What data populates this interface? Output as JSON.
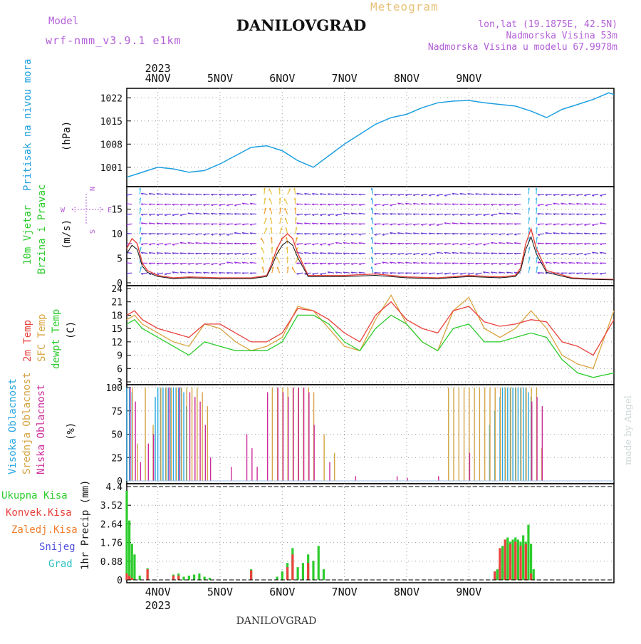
{
  "header": {
    "model_label": "Model",
    "model_name": "wrf-nmm_v3.9.1 e1km",
    "meteogram_label": "Meteogram",
    "station": "DANILOVGRAD",
    "lonlat": "lon,lat (19.1875E, 42.5N)",
    "elevation": "Nadmorska Visina 53m",
    "model_elevation": "Nadmorska Visina u modelu 67.9978m"
  },
  "footer": {
    "station": "DANILOVGRAD",
    "credit": "made by Angel"
  },
  "colors": {
    "pressure": "#1e9fe0",
    "temp2m": "#e8423c",
    "sfc": "#d9a441",
    "dew": "#2dcc2d",
    "wind_label": "#2dcc2d",
    "high_cloud": "#29a7e0",
    "mid_cloud": "#d4a443",
    "low_cloud": "#cc2b9b",
    "total_precip": "#2dcc2d",
    "conv_precip": "#e8423c",
    "frozen": "#f07e2f",
    "snow": "#5050e0",
    "hail": "#30c0c0",
    "violet": "#b45fd8"
  },
  "chart_data": [
    {
      "id": "pressure",
      "type": "line",
      "ylabel": "Pritisak na nivou mora",
      "unit": "(hPa)",
      "ylim": [
        996,
        1024
      ],
      "yticks": [
        1001,
        1008,
        1015,
        1022
      ],
      "x_days_top_year": "2023",
      "days": [
        "4NOV",
        "5NOV",
        "6NOV",
        "7NOV",
        "8NOV",
        "9NOV"
      ],
      "series": [
        {
          "x": [
            0,
            4,
            8,
            12,
            18,
            24,
            30,
            36,
            42,
            48,
            54,
            60,
            66,
            72,
            78,
            84,
            90,
            96,
            102,
            108,
            114,
            120,
            126,
            132,
            138,
            144,
            150,
            156,
            162,
            168,
            174,
            180,
            186,
            188
          ],
          "y": [
            998,
            999,
            1000,
            1001,
            1000.5,
            999.5,
            1000,
            1002,
            1004.5,
            1007,
            1007.5,
            1006,
            1003,
            1001,
            1004.5,
            1008,
            1011,
            1014,
            1016,
            1017,
            1019,
            1020.5,
            1021,
            1021.2,
            1020.5,
            1020,
            1019.5,
            1018,
            1016,
            1018.5,
            1020,
            1021.5,
            1023.5,
            1023
          ]
        }
      ]
    },
    {
      "id": "wind",
      "type": "line",
      "ylabel": "10m Vjetar",
      "ylabel2": "Brzina i Pravac",
      "unit": "(m/s)",
      "compass": [
        "W",
        "E",
        "N",
        "S"
      ],
      "ylim": [
        0,
        19
      ],
      "yticks": [
        0,
        5,
        10,
        15
      ],
      "series": [
        {
          "name": "speed",
          "x": [
            0,
            2,
            4,
            6,
            8,
            12,
            18,
            24,
            36,
            48,
            54,
            56,
            58,
            60,
            62,
            64,
            66,
            70,
            84,
            96,
            108,
            120,
            132,
            144,
            150,
            152,
            154,
            156,
            158,
            162,
            172,
            180,
            188
          ],
          "y": [
            7,
            9,
            8,
            4,
            2.5,
            1.5,
            1,
            1.2,
            1,
            1,
            1.5,
            4,
            7,
            9,
            10,
            9,
            6,
            1.5,
            1.5,
            1.8,
            1.2,
            1,
            1.5,
            1.2,
            1.5,
            3,
            8,
            11,
            7,
            2.5,
            1,
            0.8,
            0.7
          ]
        }
      ]
    },
    {
      "id": "temperature",
      "type": "line",
      "ylabel": "2m Temp",
      "ylabel2": "SFC Temp",
      "ylabel3": "dewpt Temp",
      "unit": "(C)",
      "ylim": [
        3,
        24
      ],
      "yticks": [
        3,
        6,
        9,
        12,
        15,
        18,
        21,
        24
      ],
      "series": [
        {
          "name": "2m Temp",
          "x": [
            0,
            3,
            6,
            12,
            18,
            24,
            30,
            36,
            42,
            48,
            54,
            60,
            66,
            72,
            78,
            84,
            90,
            96,
            102,
            108,
            114,
            120,
            126,
            132,
            138,
            144,
            150,
            156,
            162,
            168,
            174,
            180,
            188
          ],
          "y": [
            18,
            19,
            17,
            15,
            14,
            13,
            16,
            16,
            14,
            12,
            12,
            14,
            19.5,
            19,
            17,
            14,
            12,
            18,
            21,
            17,
            15,
            14,
            19,
            20,
            16.5,
            15.5,
            16,
            17,
            16.5,
            12,
            11,
            9,
            17
          ]
        },
        {
          "name": "SFC Temp",
          "x": [
            0,
            3,
            6,
            12,
            18,
            24,
            30,
            36,
            42,
            48,
            54,
            60,
            66,
            72,
            78,
            84,
            90,
            96,
            102,
            108,
            114,
            120,
            126,
            132,
            138,
            144,
            150,
            156,
            162,
            168,
            174,
            180,
            188
          ],
          "y": [
            17,
            18,
            16,
            14,
            12,
            11,
            16,
            15,
            12,
            10,
            11,
            13,
            20,
            19,
            15,
            11,
            10,
            17,
            22.5,
            16,
            12,
            10,
            19,
            22,
            15,
            13,
            15,
            19,
            15,
            9,
            7,
            6,
            19
          ]
        },
        {
          "name": "dewpt Temp",
          "x": [
            0,
            3,
            6,
            12,
            18,
            24,
            30,
            36,
            42,
            48,
            54,
            60,
            66,
            72,
            78,
            84,
            90,
            96,
            102,
            108,
            114,
            120,
            126,
            132,
            138,
            144,
            150,
            156,
            162,
            168,
            174,
            180,
            188
          ],
          "y": [
            16,
            17,
            15,
            13,
            11,
            9,
            12,
            11,
            10,
            10,
            10,
            12,
            18,
            18,
            16,
            12,
            10,
            15,
            18,
            16,
            12,
            10,
            15,
            16,
            12,
            12,
            13,
            14,
            13,
            8,
            5,
            4,
            5
          ]
        }
      ]
    },
    {
      "id": "clouds",
      "type": "bar",
      "ylabel": "Visoka Oblacnost",
      "ylabel2": "Srednja Oblacnost",
      "ylabel3": "Niska Oblacnost",
      "unit": "(%)",
      "ylim": [
        0,
        100
      ],
      "yticks": [
        0,
        25,
        50,
        75,
        100
      ],
      "series": [
        {
          "name": "Visoka Oblacnost",
          "x": [
            0,
            1,
            2,
            11,
            12,
            13,
            14,
            15,
            16,
            17,
            18,
            19,
            20,
            21,
            22,
            23,
            140,
            142,
            144,
            145,
            146,
            147,
            148,
            149,
            150,
            151,
            152,
            153,
            154,
            155,
            156
          ],
          "values": [
            100,
            100,
            95,
            90,
            100,
            100,
            100,
            100,
            100,
            100,
            100,
            100,
            100,
            100,
            95,
            80,
            60,
            75,
            90,
            100,
            100,
            100,
            100,
            100,
            100,
            100,
            100,
            100,
            100,
            95,
            90
          ]
        },
        {
          "name": "Srednja Oblacnost",
          "x": [
            2,
            4,
            7,
            10,
            13,
            15,
            17,
            19,
            21,
            23,
            25,
            27,
            29,
            31,
            56,
            58,
            60,
            62,
            64,
            66,
            68,
            70,
            72,
            76,
            80,
            124,
            126,
            128,
            130,
            132,
            134,
            136,
            138,
            140,
            142,
            144,
            146,
            148,
            150,
            152,
            154,
            156,
            158,
            160
          ],
          "values": [
            100,
            40,
            100,
            60,
            100,
            100,
            100,
            100,
            100,
            100,
            100,
            100,
            95,
            80,
            100,
            100,
            100,
            100,
            100,
            100,
            100,
            100,
            95,
            50,
            30,
            100,
            100,
            100,
            100,
            100,
            100,
            100,
            100,
            100,
            100,
            100,
            100,
            100,
            100,
            100,
            100,
            100,
            100,
            35
          ]
        },
        {
          "name": "Niska Oblacnost",
          "x": [
            1,
            3,
            5,
            8,
            10,
            16,
            20,
            24,
            26,
            28,
            30,
            32,
            40,
            46,
            48,
            50,
            54,
            58,
            60,
            62,
            64,
            66,
            68,
            70,
            72,
            78,
            88,
            104,
            108,
            120,
            132,
            156,
            158,
            160
          ],
          "values": [
            100,
            85,
            20,
            40,
            50,
            100,
            100,
            95,
            90,
            85,
            60,
            25,
            15,
            50,
            35,
            15,
            95,
            100,
            95,
            90,
            100,
            100,
            100,
            95,
            60,
            20,
            5,
            5,
            3,
            5,
            30,
            85,
            90,
            80
          ]
        }
      ]
    },
    {
      "id": "precip",
      "type": "bar",
      "ylabel": "1hr Precip (mm)",
      "legend": [
        "Ukupna Kisa",
        "Konvek.Kisa",
        "Zaledj.Kisa",
        "Snijeg",
        "Grad"
      ],
      "ylim": [
        0,
        4.4
      ],
      "yticks": [
        0,
        0.88,
        1.76,
        2.64,
        3.52,
        4.4
      ],
      "series": [
        {
          "name": "Ukupna Kisa",
          "x": [
            0,
            1,
            2,
            3,
            5,
            8,
            18,
            20,
            22,
            24,
            26,
            28,
            30,
            32,
            48,
            58,
            60,
            62,
            64,
            66,
            68,
            70,
            72,
            74,
            76,
            142,
            143,
            144,
            145,
            146,
            147,
            148,
            149,
            150,
            151,
            152,
            153,
            154,
            155,
            156,
            157
          ],
          "values": [
            4.2,
            2.8,
            1.7,
            1.2,
            0.2,
            0.55,
            0.25,
            0.3,
            0.15,
            0.2,
            0.25,
            0.3,
            0.15,
            0.1,
            0.5,
            0.15,
            0.4,
            0.8,
            1.5,
            0.6,
            0.8,
            1.2,
            0.9,
            1.6,
            0.5,
            0.2,
            0.5,
            0.8,
            1.6,
            1.9,
            2.0,
            1.8,
            1.9,
            2.0,
            1.9,
            1.8,
            2.1,
            1.8,
            2.6,
            1.7,
            0.5
          ]
        },
        {
          "name": "Konvek.Kisa",
          "x": [
            0,
            1,
            2,
            8,
            18,
            20,
            48,
            62,
            64,
            70,
            142,
            144,
            146,
            148,
            150,
            152,
            154,
            156
          ],
          "values": [
            0.3,
            0.2,
            0.1,
            0.5,
            0.2,
            0.2,
            0.45,
            0.6,
            1.2,
            0.8,
            0.4,
            1.5,
            1.9,
            1.7,
            1.8,
            1.6,
            1.7,
            0.3
          ]
        }
      ]
    }
  ]
}
